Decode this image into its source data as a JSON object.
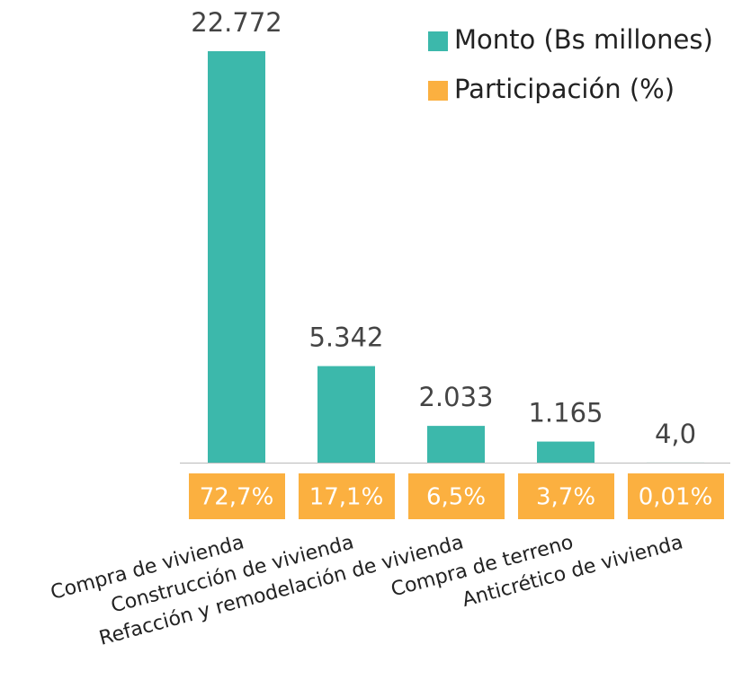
{
  "chart_data": {
    "type": "bar",
    "categories": [
      "Compra de vivienda",
      "Construcción de vivienda",
      "Refacción y remodelación de vivienda",
      "Compra de terreno",
      "Anticrético de vivienda"
    ],
    "series": [
      {
        "name": "Monto (Bs millones)",
        "color": "#3cb8ab",
        "values": [
          22772,
          5342,
          2033,
          1165,
          4.0
        ],
        "value_labels": [
          "22.772",
          "5.342",
          "2.033",
          "1.165",
          "4,0"
        ]
      },
      {
        "name": "Participación (%)",
        "color": "#fbb040",
        "values": [
          72.7,
          17.1,
          6.5,
          3.7,
          0.01
        ],
        "value_labels": [
          "72,7%",
          "17,1%",
          "6,5%",
          "3,7%",
          "0,01%"
        ]
      }
    ],
    "legend": "top-right"
  }
}
